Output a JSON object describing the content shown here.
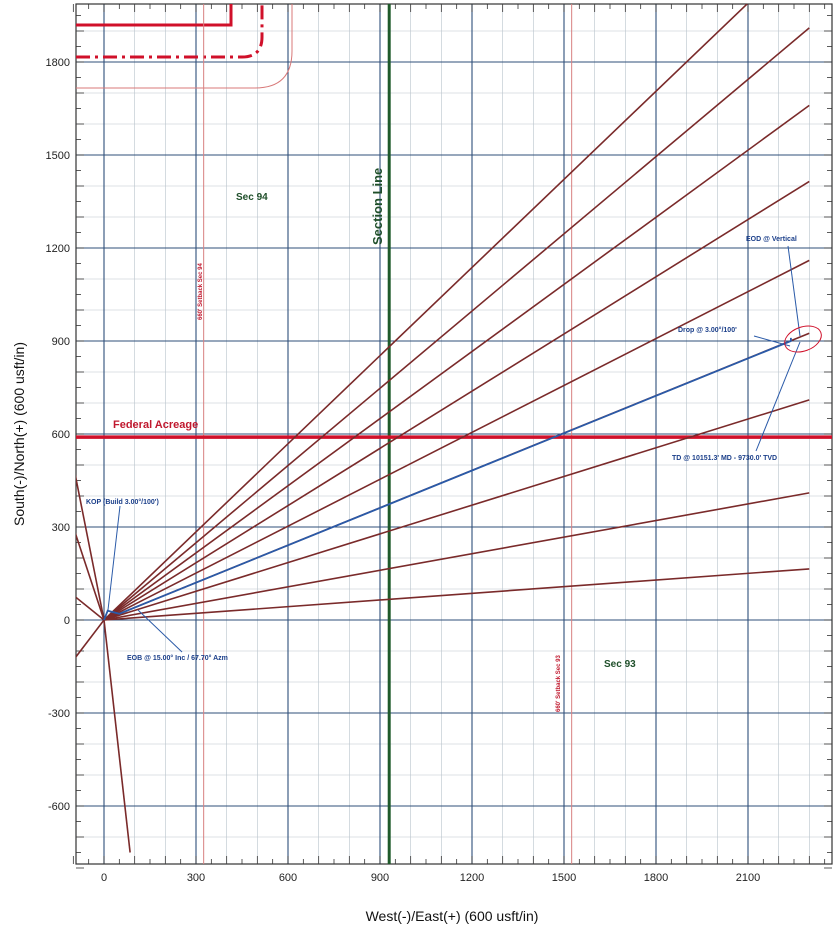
{
  "chart_data": {
    "type": "line",
    "xlabel": "West(-)/East(+) (600 usft/in)",
    "ylabel": "South(-)/North(+) (600 usft/in)",
    "xlim": [
      -100,
      2350
    ],
    "ylim": [
      -800,
      1990
    ],
    "x_ticks": [
      0,
      300,
      600,
      900,
      1200,
      1500,
      1800,
      2100
    ],
    "y_ticks": [
      -600,
      -300,
      0,
      300,
      600,
      900,
      1200,
      1500,
      1800
    ],
    "grid": true,
    "colors": {
      "grid": "#2f4f7a",
      "minor_grid": "#b9c3cc",
      "offset_wells": "#7a2a2a",
      "planned_well": "#2a5aa8",
      "section_line": "#1f5a2a",
      "federal_line": "#d0102a",
      "setback": "#c0182e"
    },
    "planned_well": {
      "x": [
        0,
        12,
        50,
        2240,
        2240
      ],
      "y": [
        0,
        30,
        20,
        900,
        910
      ]
    },
    "offset_wells": [
      {
        "x": [
          0,
          2100
        ],
        "y": [
          0,
          1990
        ]
      },
      {
        "x": [
          0,
          2300
        ],
        "y": [
          0,
          1910
        ]
      },
      {
        "x": [
          0,
          2300
        ],
        "y": [
          0,
          1660
        ]
      },
      {
        "x": [
          0,
          2300
        ],
        "y": [
          0,
          1415
        ]
      },
      {
        "x": [
          0,
          2300
        ],
        "y": [
          0,
          1160
        ]
      },
      {
        "x": [
          0,
          2300
        ],
        "y": [
          0,
          925
        ]
      },
      {
        "x": [
          0,
          2300
        ],
        "y": [
          0,
          710
        ]
      },
      {
        "x": [
          0,
          2300
        ],
        "y": [
          0,
          410
        ]
      },
      {
        "x": [
          0,
          2300
        ],
        "y": [
          0,
          165
        ]
      },
      {
        "x": [
          0,
          -100
        ],
        "y": [
          0,
          500
        ]
      },
      {
        "x": [
          0,
          -100
        ],
        "y": [
          0,
          300
        ]
      },
      {
        "x": [
          0,
          -100
        ],
        "y": [
          0,
          80
        ]
      },
      {
        "x": [
          0,
          -100
        ],
        "y": [
          0,
          -130
        ]
      },
      {
        "x": [
          0,
          85
        ],
        "y": [
          0,
          -750
        ]
      }
    ],
    "section_line_x": 930,
    "federal_acreage_y": 590,
    "setback_lines_x": [
      325,
      1525
    ],
    "annotations": {
      "section_line": "Section Line",
      "federal_acreage": "Federal Acreage",
      "sec_94": "Sec 94",
      "sec_93": "Sec 93",
      "eod": "EOD @ Vertical",
      "drop": "Drop @ 3.00°/100'",
      "td": "TD @ 10151.3' MD - 9730.0' TVD",
      "kop": "KOP (Build 3.00°/100')",
      "eob": "EOB @ 15.00° Inc / 67.70° Azm",
      "setback_94": "660' Setback Sec 94",
      "setback_93": "660' Setback Sec 93"
    }
  }
}
